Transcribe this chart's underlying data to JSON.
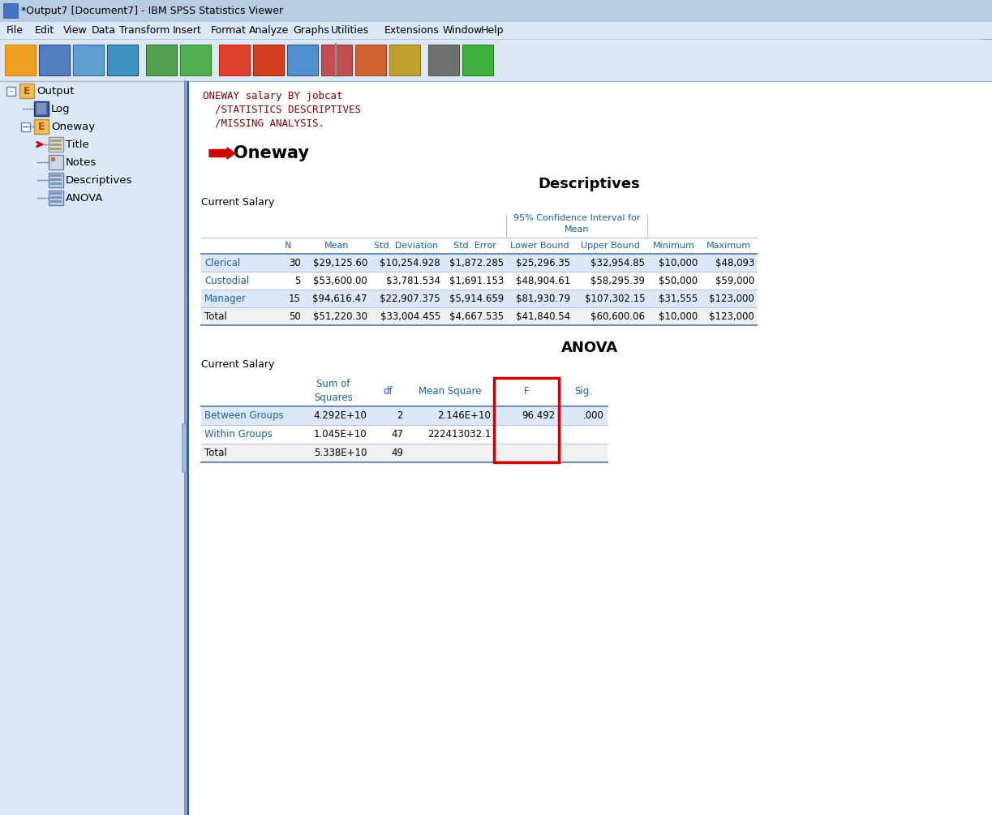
{
  "title_bar": "*Output7 [Document7] - IBM SPSS Statistics Viewer",
  "menu_items": [
    "File",
    "Edit",
    "View",
    "Data",
    "Transform",
    "Insert",
    "Format",
    "Analyze",
    "Graphs",
    "Utilities",
    "Extensions",
    "Window",
    "Help"
  ],
  "code_text": [
    "ONEWAY salary BY jobcat",
    "  /STATISTICS DESCRIPTIVES",
    "  /MISSING ANALYSIS."
  ],
  "section_title": "Oneway",
  "desc_title": "Descriptives",
  "desc_subtitle": "Current Salary",
  "desc_rows": [
    [
      "Clerical",
      "30",
      "$29,125.60",
      "$10,254.928",
      "$1,872.285",
      "$25,296.35",
      "$32,954.85",
      "$10,000",
      "$48,093"
    ],
    [
      "Custodial",
      "5",
      "$53,600.00",
      "$3,781.534",
      "$1,691.153",
      "$48,904.61",
      "$58,295.39",
      "$50,000",
      "$59,000"
    ],
    [
      "Manager",
      "15",
      "$94,616.47",
      "$22,907.375",
      "$5,914.659",
      "$81,930.79",
      "$107,302.15",
      "$31,555",
      "$123,000"
    ],
    [
      "Total",
      "50",
      "$51,220.30",
      "$33,004.455",
      "$4,667.535",
      "$41,840.54",
      "$60,600.06",
      "$10,000",
      "$123,000"
    ]
  ],
  "anova_title": "ANOVA",
  "anova_subtitle": "Current Salary",
  "anova_rows": [
    [
      "Between Groups",
      "4.292E+10",
      "2",
      "2.146E+10",
      "96.492",
      ".000"
    ],
    [
      "Within Groups",
      "1.045E+10",
      "47",
      "222413032.1",
      "",
      ""
    ],
    [
      "Total",
      "5.338E+10",
      "49",
      "",
      "",
      ""
    ]
  ],
  "win_bg": "#ccd9ea",
  "titlebar_bg": "#b8cce4",
  "menubar_bg": "#dce8f5",
  "toolbar_bg": "#dce8f5",
  "sidebar_bg": "#dce8f5",
  "content_bg": "#ffffff",
  "row_odd_bg": "#dce8f7",
  "row_even_bg": "#ffffff",
  "total_row_bg": "#f0f0f0",
  "hdr_text_col": "#1a5fa8",
  "lbl_text_col": "#1a5fa8",
  "body_text_col": "#000000",
  "red_col": "#cc0000",
  "divider_col": "#7090b8",
  "thin_line_col": "#b0c0d8"
}
